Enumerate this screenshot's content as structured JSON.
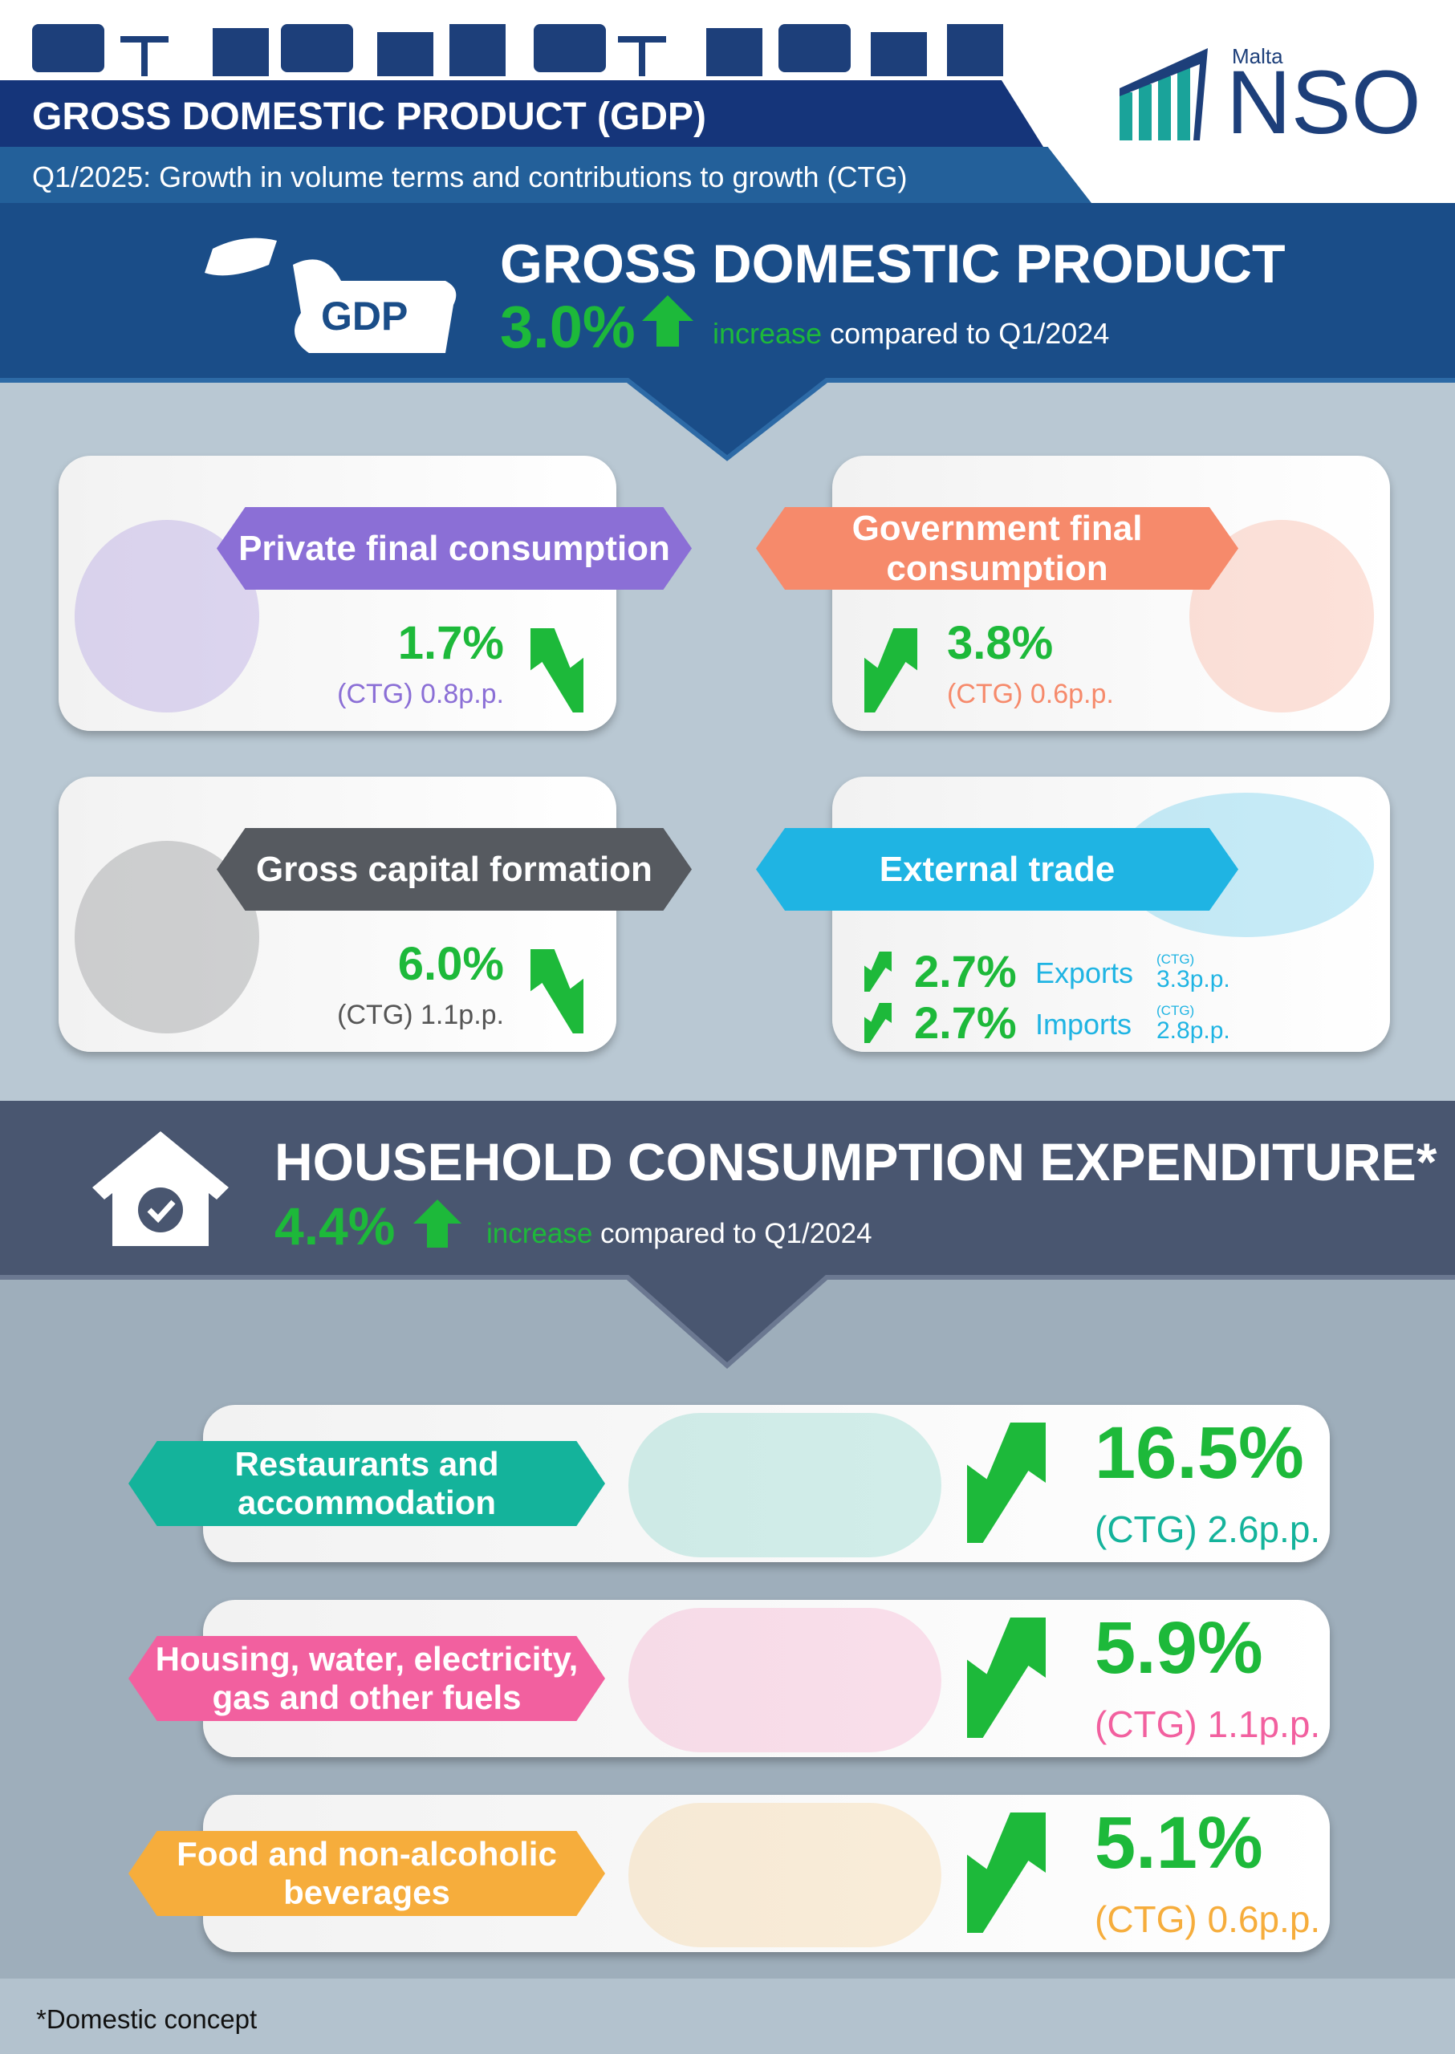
{
  "header": {
    "title": "GROSS DOMESTIC PRODUCT (GDP)",
    "subtitle": "Q1/2025: Growth in volume terms and contributions to growth (CTG)",
    "logo_small": "Malta",
    "logo": "NSO"
  },
  "gdp": {
    "icon": "GDP",
    "title": "GROSS DOMESTIC PRODUCT",
    "value": "3.0%",
    "change": "increase",
    "comparison": "compared to Q1/2024"
  },
  "components": [
    {
      "name": "Private final consumption",
      "growth": "1.7%",
      "ctg": "(CTG) 0.8p.p.",
      "color": "#8b6fd6"
    },
    {
      "name": "Government final consumption",
      "growth": "3.8%",
      "ctg": "(CTG) 0.6p.p.",
      "color": "#f68a6b"
    },
    {
      "name": "Gross capital formation",
      "growth": "6.0%",
      "ctg": "(CTG) 1.1p.p.",
      "color": "#565a60"
    },
    {
      "name": "External trade",
      "color": "#1fb4e3",
      "flows": [
        {
          "growth": "2.7%",
          "name": "Exports",
          "ctg_label": "(CTG)",
          "ctg": "3.3p.p."
        },
        {
          "growth": "2.7%",
          "name": "Imports",
          "ctg_label": "(CTG)",
          "ctg": "2.8p.p."
        }
      ]
    }
  ],
  "household": {
    "title": "HOUSEHOLD CONSUMPTION EXPENDITURE*",
    "value": "4.4%",
    "change": "increase",
    "comparison": "compared to Q1/2024"
  },
  "categories": [
    {
      "name_lines": [
        "Restaurants and",
        "accommodation"
      ],
      "growth": "16.5%",
      "ctg": "(CTG) 2.6p.p.",
      "color": "#14b39b"
    },
    {
      "name_lines": [
        "Housing, water, electricity,",
        "gas and other fuels"
      ],
      "growth": "5.9%",
      "ctg": "(CTG) 1.1p.p.",
      "color": "#f2609f"
    },
    {
      "name_lines": [
        "Food and non-alcoholic",
        "beverages"
      ],
      "growth": "5.1%",
      "ctg": "(CTG) 0.6p.p.",
      "color": "#f6ad3c"
    }
  ],
  "footnote": "*Domestic concept"
}
